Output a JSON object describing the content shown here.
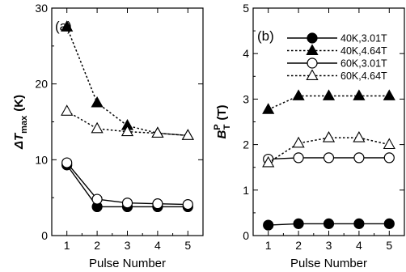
{
  "chart_data": [
    {
      "type": "line",
      "panel_label": "(a)",
      "xlabel": "Pulse Number",
      "ylabel_main": "ΔT",
      "ylabel_sub": "max",
      "ylabel_unit": "(K)",
      "x": [
        1,
        2,
        3,
        4,
        5
      ],
      "xlim": [
        0.5,
        5.5
      ],
      "ylim": [
        0,
        30
      ],
      "xticks": [
        "1",
        "2",
        "3",
        "4",
        "5"
      ],
      "yticks": [
        "0",
        "10",
        "20",
        "30"
      ],
      "grid": false,
      "series": [
        {
          "values": [
            9.3,
            3.8,
            3.8,
            3.8,
            3.8
          ],
          "marker": "circle-filled",
          "line": "solid"
        },
        {
          "values": [
            27.5,
            17.5,
            14.5,
            13.5,
            13.2
          ],
          "marker": "triangle-filled",
          "line": "dotted"
        },
        {
          "values": [
            9.6,
            4.8,
            4.3,
            4.2,
            4.1
          ],
          "marker": "circle-open",
          "line": "solid"
        },
        {
          "values": [
            16.4,
            14.1,
            13.7,
            13.5,
            13.2
          ],
          "marker": "triangle-open",
          "line": "dotted"
        }
      ]
    },
    {
      "type": "line",
      "panel_label": "(b)",
      "xlabel": "Pulse Number",
      "ylabel_main": "B",
      "ylabel_sub": "T",
      "ylabel_sup": "P",
      "ylabel_unit": "(T)",
      "x": [
        1,
        2,
        3,
        4,
        5
      ],
      "xlim": [
        0.5,
        5.5
      ],
      "ylim": [
        0,
        5
      ],
      "xticks": [
        "1",
        "2",
        "3",
        "4",
        "5"
      ],
      "yticks": [
        "0",
        "1",
        "2",
        "3",
        "4",
        "5"
      ],
      "grid": false,
      "legend_position": "top-right",
      "series": [
        {
          "name": "40K,3.01T",
          "values": [
            0.23,
            0.26,
            0.26,
            0.26,
            0.26
          ],
          "marker": "circle-filled",
          "line": "solid"
        },
        {
          "name": "40K,4.64T",
          "values": [
            2.77,
            3.07,
            3.07,
            3.07,
            3.07
          ],
          "marker": "triangle-filled",
          "line": "dotted"
        },
        {
          "name": "60K,3.01T",
          "values": [
            1.68,
            1.71,
            1.71,
            1.71,
            1.71
          ],
          "marker": "circle-open",
          "line": "solid"
        },
        {
          "name": "60K,4.64T",
          "values": [
            1.6,
            2.03,
            2.15,
            2.15,
            2.0
          ],
          "marker": "triangle-open",
          "line": "dotted"
        }
      ]
    }
  ]
}
